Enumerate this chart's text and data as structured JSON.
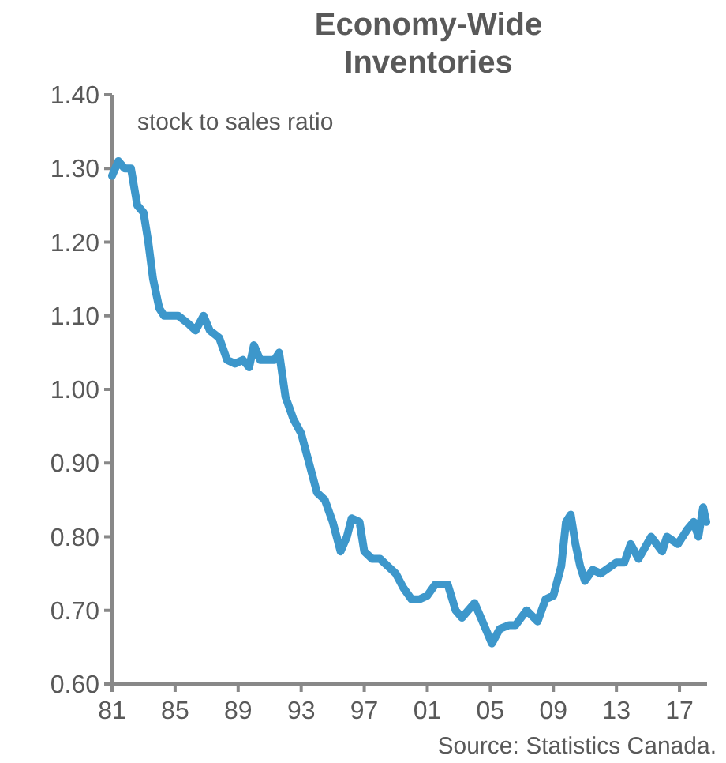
{
  "chart_data": {
    "type": "line",
    "title": "Economy-Wide\nInventories",
    "annotations": [
      "stock to sales ratio",
      "Source: Statistics Canada."
    ],
    "x": [
      1981.0,
      1981.4,
      1981.8,
      1982.2,
      1982.6,
      1983.0,
      1983.3,
      1983.6,
      1984.0,
      1984.3,
      1984.8,
      1985.2,
      1985.8,
      1986.3,
      1986.8,
      1987.2,
      1987.8,
      1988.3,
      1988.8,
      1989.3,
      1989.7,
      1990.0,
      1990.4,
      1990.8,
      1991.3,
      1991.6,
      1992.0,
      1992.5,
      1993.0,
      1993.5,
      1994.0,
      1994.5,
      1995.0,
      1995.5,
      1995.9,
      1996.2,
      1996.7,
      1997.0,
      1997.5,
      1998.0,
      1998.5,
      1999.0,
      1999.5,
      2000.0,
      2000.5,
      2001.0,
      2001.5,
      2002.3,
      2002.8,
      2003.2,
      2004.0,
      2004.8,
      2005.1,
      2005.6,
      2006.2,
      2006.6,
      2007.3,
      2008.0,
      2008.5,
      2009.0,
      2009.5,
      2009.8,
      2010.1,
      2010.4,
      2010.7,
      2011.0,
      2011.5,
      2012.0,
      2013.0,
      2013.5,
      2013.9,
      2014.4,
      2015.2,
      2015.9,
      2016.2,
      2016.9,
      2017.5,
      2017.9,
      2018.2,
      2018.5,
      2018.7
    ],
    "series": [
      {
        "color": "#3d97cb",
        "values": [
          1.29,
          1.31,
          1.3,
          1.3,
          1.25,
          1.24,
          1.2,
          1.15,
          1.11,
          1.1,
          1.1,
          1.1,
          1.09,
          1.08,
          1.1,
          1.08,
          1.07,
          1.04,
          1.035,
          1.04,
          1.03,
          1.06,
          1.04,
          1.04,
          1.04,
          1.05,
          0.99,
          0.96,
          0.94,
          0.9,
          0.86,
          0.85,
          0.82,
          0.78,
          0.8,
          0.825,
          0.82,
          0.78,
          0.77,
          0.77,
          0.76,
          0.75,
          0.73,
          0.715,
          0.715,
          0.72,
          0.735,
          0.735,
          0.7,
          0.69,
          0.71,
          0.67,
          0.655,
          0.675,
          0.68,
          0.68,
          0.7,
          0.685,
          0.715,
          0.72,
          0.76,
          0.82,
          0.83,
          0.79,
          0.76,
          0.74,
          0.755,
          0.75,
          0.765,
          0.765,
          0.79,
          0.77,
          0.8,
          0.78,
          0.8,
          0.79,
          0.81,
          0.82,
          0.8,
          0.84,
          0.82
        ]
      }
    ],
    "xlim": [
      1981,
      2018.75
    ],
    "xticks": [
      {
        "value": 1981,
        "label": "81"
      },
      {
        "value": 1985,
        "label": "85"
      },
      {
        "value": 1989,
        "label": "89"
      },
      {
        "value": 1993,
        "label": "93"
      },
      {
        "value": 1997,
        "label": "97"
      },
      {
        "value": 2001,
        "label": "01"
      },
      {
        "value": 2005,
        "label": "05"
      },
      {
        "value": 2009,
        "label": "09"
      },
      {
        "value": 2013,
        "label": "13"
      },
      {
        "value": 2017,
        "label": "17"
      }
    ],
    "ylim": [
      0.6,
      1.4
    ],
    "yticks": [
      {
        "value": 0.6,
        "label": "0.60"
      },
      {
        "value": 0.7,
        "label": "0.70"
      },
      {
        "value": 0.8,
        "label": "0.80"
      },
      {
        "value": 0.9,
        "label": "0.90"
      },
      {
        "value": 1.0,
        "label": "1.00"
      },
      {
        "value": 1.1,
        "label": "1.10"
      },
      {
        "value": 1.2,
        "label": "1.20"
      },
      {
        "value": 1.3,
        "label": "1.30"
      },
      {
        "value": 1.4,
        "label": "1.40"
      }
    ],
    "grid": false
  }
}
